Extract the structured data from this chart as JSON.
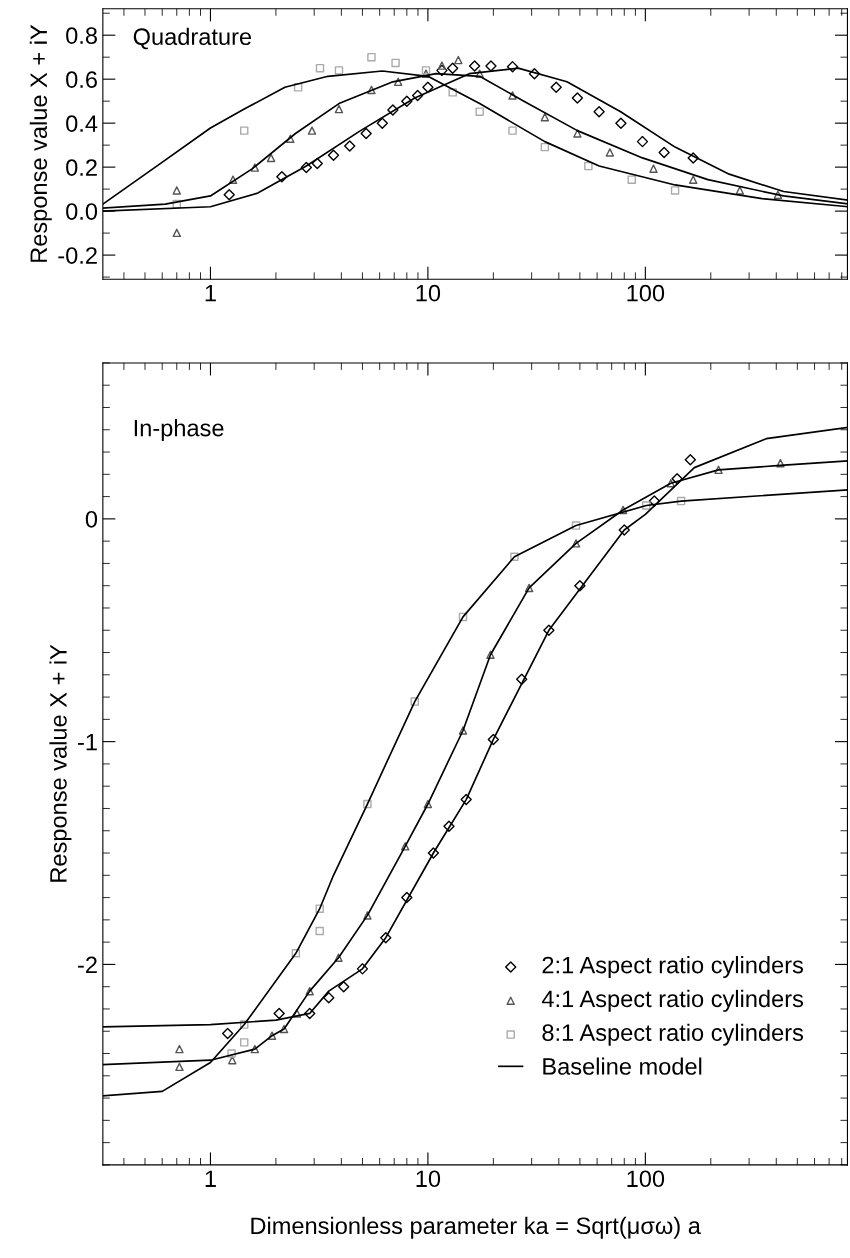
{
  "chart_data": [
    {
      "type": "scatter",
      "annotations": [
        "Quadrature"
      ],
      "ylabel": "Response value X + iY",
      "log": "x",
      "legend": false,
      "xlim": [
        0.32,
        850
      ],
      "xticks": [
        1,
        10,
        100
      ],
      "ylim": [
        -0.31,
        0.92
      ],
      "yticks": [
        -0.2,
        {
          "value": 0,
          "label": "0.0"
        },
        0.2,
        0.4,
        0.6,
        0.8
      ],
      "grid": false,
      "series": [
        {
          "marker": "diamond",
          "color": "#000000",
          "x": [
            1.22,
            2.13,
            2.76,
            3.1,
            3.68,
            4.37,
            5.2,
            6.17,
            6.9,
            8.0,
            8.97,
            10,
            11.6,
            13.0,
            16.4,
            19.5,
            24.5,
            30.9,
            38.9,
            48.7,
            61.3,
            77.2,
            97,
            122,
            166
          ],
          "values": [
            0.074,
            0.156,
            0.198,
            0.217,
            0.254,
            0.296,
            0.353,
            0.4,
            0.46,
            0.5,
            0.526,
            0.563,
            0.64,
            0.65,
            0.66,
            0.66,
            0.657,
            0.625,
            0.563,
            0.514,
            0.452,
            0.4,
            0.316,
            0.267,
            0.242
          ]
        },
        {
          "marker": "triangle",
          "color": "#555555",
          "x": [
            0.7,
            0.7,
            1.27,
            1.6,
            1.9,
            2.33,
            2.93,
            3.9,
            5.5,
            7.3,
            9.8,
            11.6,
            13.8,
            17.3,
            24.5,
            34.5,
            48.7,
            68.7,
            109,
            166,
            272,
            407
          ],
          "values": [
            0.094,
            -0.099,
            0.143,
            0.198,
            0.242,
            0.329,
            0.366,
            0.464,
            0.551,
            0.588,
            0.625,
            0.662,
            0.687,
            0.625,
            0.526,
            0.427,
            0.353,
            0.267,
            0.193,
            0.143,
            0.094,
            0.074
          ]
        },
        {
          "marker": "square",
          "color": "#aaaaaa",
          "x": [
            0.7,
            1.43,
            2.53,
            3.19,
            3.9,
            5.5,
            7.1,
            9.8,
            13,
            17.3,
            24.5,
            34.5,
            54.7,
            86.6,
            137
          ],
          "values": [
            0.032,
            0.366,
            0.563,
            0.65,
            0.64,
            0.7,
            0.674,
            0.64,
            0.54,
            0.452,
            0.366,
            0.291,
            0.205,
            0.143,
            0.094
          ]
        },
        {
          "type": "line",
          "color": "#000000",
          "x": [
            0.32,
            0.59,
            1.0,
            1.43,
            2.2,
            3.47,
            6.17,
            10,
            17.3,
            34.5,
            61.3,
            137,
            344,
            850
          ],
          "values": [
            0.032,
            0.217,
            0.378,
            0.464,
            0.563,
            0.613,
            0.637,
            0.613,
            0.489,
            0.316,
            0.205,
            0.119,
            0.057,
            0.02
          ]
        },
        {
          "type": "line",
          "color": "#000000",
          "x": [
            0.32,
            0.62,
            1,
            1.56,
            2.46,
            3.9,
            6.9,
            10.9,
            17.3,
            27.5,
            48.7,
            97,
            194,
            432,
            850
          ],
          "values": [
            0.014,
            0.032,
            0.069,
            0.193,
            0.353,
            0.489,
            0.588,
            0.625,
            0.613,
            0.501,
            0.366,
            0.242,
            0.143,
            0.069,
            0.033
          ]
        },
        {
          "type": "line",
          "color": "#000000",
          "x": [
            0.32,
            1,
            1.65,
            2.76,
            4.9,
            8.7,
            15.5,
            26,
            43.6,
            77,
            137,
            243,
            432,
            850
          ],
          "values": [
            0,
            0.02,
            0.082,
            0.205,
            0.366,
            0.514,
            0.625,
            0.65,
            0.588,
            0.452,
            0.291,
            0.168,
            0.089,
            0.05
          ]
        }
      ]
    },
    {
      "type": "scatter",
      "annotations": [
        "In-phase"
      ],
      "ylabel": "Response value X + iY",
      "xlabel": "Dimensionless parameter ka = Sqrt(μσω) a",
      "log": "x",
      "legend": "bottom right",
      "xlim": [
        0.32,
        850
      ],
      "xticks": [
        1,
        10,
        100
      ],
      "ylim": [
        -2.9,
        0.7
      ],
      "yticks": [
        -2,
        -1,
        0
      ],
      "grid": false,
      "series": [
        {
          "name": "2:1 Aspect ratio cylinders",
          "marker": "diamond",
          "color": "#000000",
          "x": [
            1.2,
            2.07,
            2.86,
            3.5,
            4.1,
            5,
            6.4,
            8,
            10.6,
            12.5,
            15,
            20,
            27,
            36,
            50,
            80,
            110,
            140,
            161
          ],
          "values": [
            -2.31,
            -2.22,
            -2.22,
            -2.15,
            -2.1,
            -2.02,
            -1.88,
            -1.7,
            -1.5,
            -1.38,
            -1.26,
            -0.99,
            -0.72,
            -0.5,
            -0.3,
            -0.05,
            0.08,
            0.18,
            0.265
          ]
        },
        {
          "name": "4:1 Aspect ratio cylinders",
          "marker": "triangle",
          "color": "#555555",
          "x": [
            0.72,
            0.72,
            1.26,
            1.6,
            1.92,
            2.18,
            2.5,
            2.86,
            3.88,
            5.27,
            7.86,
            10,
            14.5,
            19.4,
            29.2,
            48,
            79,
            131,
            217,
            418
          ],
          "values": [
            -2.38,
            -2.46,
            -2.43,
            -2.38,
            -2.32,
            -2.29,
            -2.22,
            -2.12,
            -1.97,
            -1.78,
            -1.47,
            -1.28,
            -0.95,
            -0.61,
            -0.31,
            -0.11,
            0.04,
            0.16,
            0.22,
            0.25
          ]
        },
        {
          "name": "8:1 Aspect ratio cylinders",
          "marker": "square",
          "color": "#aaaaaa",
          "x": [
            1.25,
            1.43,
            1.43,
            2.47,
            3.18,
            3.18,
            5.27,
            8.7,
            14.5,
            25,
            48,
            101,
            146
          ],
          "values": [
            -2.4,
            -2.27,
            -2.35,
            -1.95,
            -1.75,
            -1.85,
            -1.28,
            -0.82,
            -0.44,
            -0.17,
            -0.03,
            0.06,
            0.08
          ]
        },
        {
          "type": "line",
          "name": "Baseline model",
          "color": "#000000",
          "x": [
            0.32,
            1,
            2,
            2.86,
            3.5,
            5,
            6.4,
            10.6,
            15,
            20,
            36,
            80,
            100,
            168,
            360,
            850
          ],
          "values": [
            -2.28,
            -2.27,
            -2.25,
            -2.22,
            -2.12,
            -2.02,
            -1.88,
            -1.5,
            -1.26,
            -0.99,
            -0.5,
            -0.05,
            0.02,
            0.23,
            0.36,
            0.41
          ]
        },
        {
          "type": "line",
          "color": "#000000",
          "x": [
            0.32,
            1,
            1.6,
            1.92,
            2.18,
            2.86,
            3.88,
            5.27,
            7.86,
            10,
            14.5,
            19.4,
            29.2,
            48,
            79,
            131,
            217,
            418,
            850
          ],
          "values": [
            -2.45,
            -2.43,
            -2.38,
            -2.32,
            -2.29,
            -2.12,
            -1.97,
            -1.78,
            -1.47,
            -1.28,
            -0.95,
            -0.61,
            -0.31,
            -0.11,
            0.04,
            0.16,
            0.22,
            0.24,
            0.26
          ]
        },
        {
          "type": "line",
          "color": "#000000",
          "x": [
            0.32,
            0.6,
            1,
            1.43,
            2.47,
            3.18,
            3.68,
            5.27,
            8.7,
            14.5,
            25,
            48,
            101,
            146,
            850
          ],
          "values": [
            -2.59,
            -2.57,
            -2.44,
            -2.27,
            -1.95,
            -1.75,
            -1.6,
            -1.28,
            -0.82,
            -0.44,
            -0.17,
            -0.03,
            0.06,
            0.08,
            0.13
          ]
        }
      ]
    }
  ]
}
